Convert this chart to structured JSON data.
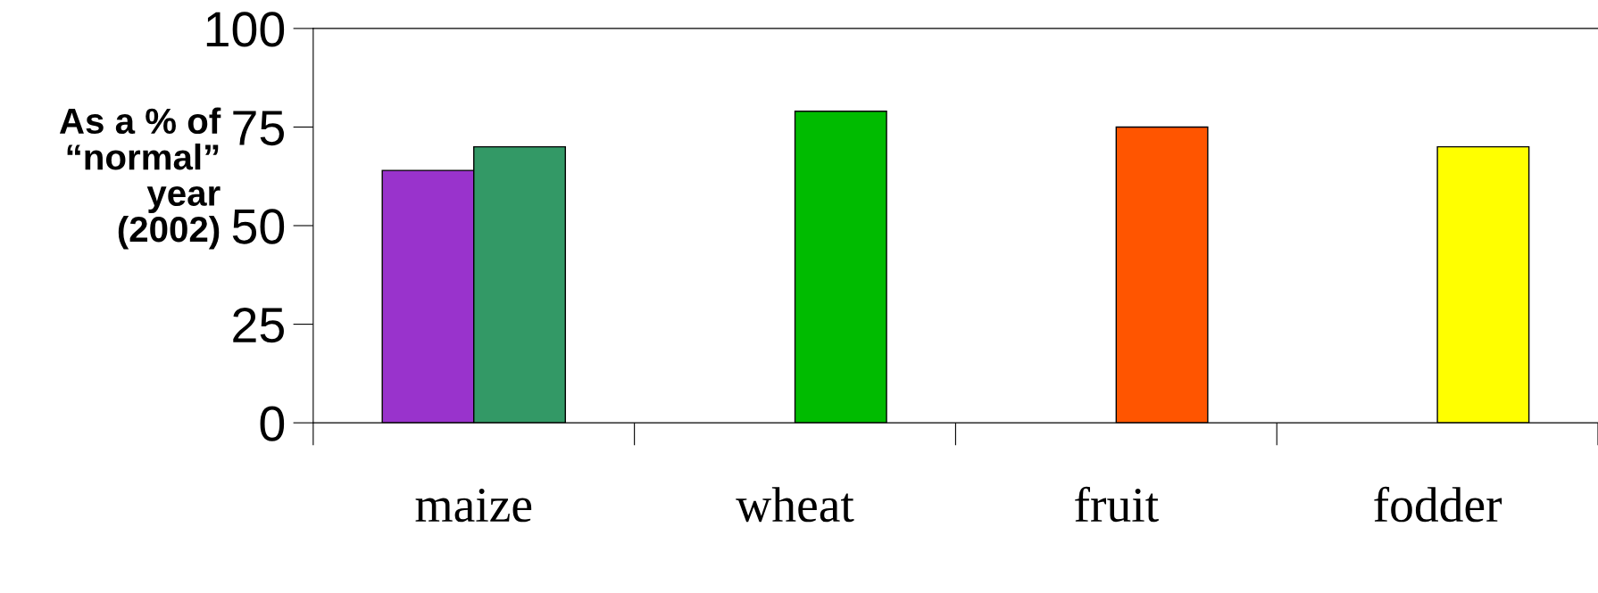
{
  "chart_data": {
    "type": "bar",
    "ylabel": "As a % of\n“normal”\nyear\n(2002)",
    "categories": [
      "maize",
      "wheat",
      "fruit",
      "fodder"
    ],
    "series": [
      {
        "colors": [
          "#9933cc",
          null,
          null,
          null
        ],
        "values": [
          64,
          null,
          null,
          null
        ]
      },
      {
        "colors": [
          "#339966",
          "#00bb00",
          "#ff5500",
          "#ffff00"
        ],
        "values": [
          70,
          79,
          75,
          70
        ]
      }
    ],
    "ylim": [
      0,
      100
    ],
    "yticks": [
      0,
      25,
      50,
      75,
      100
    ],
    "grid": false,
    "legend": false
  }
}
